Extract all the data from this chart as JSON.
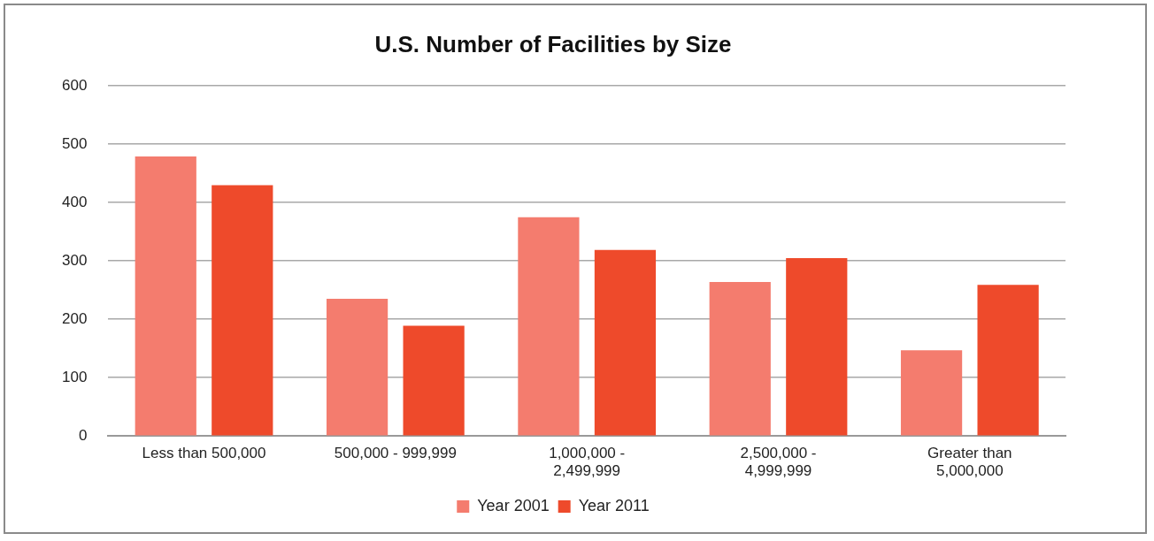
{
  "chart_data": {
    "type": "bar",
    "title": "U.S. Number of Facilities by Size",
    "categories": [
      "Less than 500,000",
      "500,000 - 999,999",
      "1,000,000 - 2,499,999",
      "2,500,000 - 4,999,999",
      "Greater than 5,000,000"
    ],
    "series": [
      {
        "name": "Year 2001",
        "color": "#f47c6e",
        "values": [
          479,
          235,
          375,
          264,
          147
        ]
      },
      {
        "name": "Year 2011",
        "color": "#ee4a2b",
        "values": [
          430,
          189,
          319,
          305,
          259
        ]
      }
    ],
    "ylim": [
      0,
      600
    ],
    "yticks": [
      0,
      100,
      200,
      300,
      400,
      500,
      600
    ],
    "grid": "y",
    "legend": "bottom"
  }
}
